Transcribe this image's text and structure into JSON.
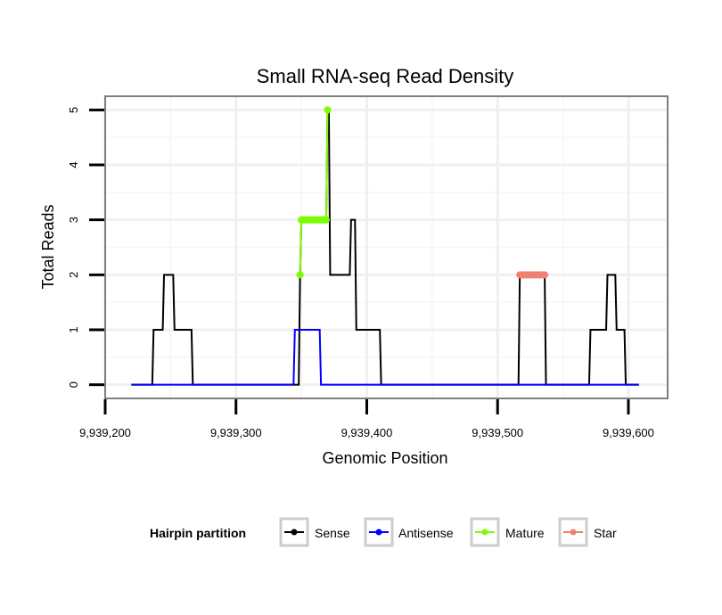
{
  "chart_data": {
    "type": "line",
    "title": "Small RNA-seq Read Density",
    "xlabel": "Genomic Position",
    "ylabel": "Total Reads",
    "xlim": [
      9939200,
      9939630
    ],
    "ylim": [
      -0.25,
      5.25
    ],
    "x_ticks": [
      9939200,
      9939300,
      9939400,
      9939500,
      9939600
    ],
    "x_tick_labels": [
      "9,939,200",
      "9,939,300",
      "9,939,400",
      "9,939,500",
      "9,939,600"
    ],
    "y_ticks": [
      0,
      1,
      2,
      3,
      4,
      5
    ],
    "y_tick_labels": [
      "0",
      "1",
      "2",
      "3",
      "4",
      "5"
    ],
    "grid": true,
    "legend_title": "Hairpin partition",
    "legend_position": "bottom",
    "series": [
      {
        "name": "Sense",
        "color": "#000000",
        "marker": "none",
        "x": [
          9939220,
          9939236,
          9939237,
          9939244,
          9939245,
          9939252,
          9939253,
          9939266,
          9939267,
          9939348,
          9939349,
          9939350,
          9939369,
          9939370,
          9939371,
          9939372,
          9939387,
          9939388,
          9939391,
          9939392,
          9939410,
          9939411,
          9939516,
          9939517,
          9939536,
          9939537,
          9939570,
          9939571,
          9939583,
          9939584,
          9939590,
          9939591,
          9939597,
          9939598,
          9939604,
          9939605,
          9939608
        ],
        "y": [
          0,
          0,
          1,
          1,
          2,
          2,
          1,
          1,
          0,
          0,
          2,
          3,
          3,
          5,
          5,
          2,
          2,
          3,
          3,
          1,
          1,
          0,
          0,
          2,
          2,
          0,
          0,
          1,
          1,
          2,
          2,
          1,
          1,
          0,
          0,
          0,
          0
        ]
      },
      {
        "name": "Antisense",
        "color": "#0000ff",
        "marker": "none",
        "x": [
          9939220,
          9939344,
          9939345,
          9939364,
          9939365,
          9939608
        ],
        "y": [
          0,
          0,
          1,
          1,
          0,
          0
        ]
      },
      {
        "name": "Mature",
        "color": "#7cfc00",
        "marker": "circle",
        "x": [
          9939349,
          9939350,
          9939351,
          9939352,
          9939353,
          9939354,
          9939355,
          9939356,
          9939357,
          9939358,
          9939359,
          9939360,
          9939361,
          9939362,
          9939363,
          9939364,
          9939365,
          9939366,
          9939367,
          9939368,
          9939369,
          9939370
        ],
        "y": [
          2,
          3,
          3,
          3,
          3,
          3,
          3,
          3,
          3,
          3,
          3,
          3,
          3,
          3,
          3,
          3,
          3,
          3,
          3,
          3,
          3,
          5
        ]
      },
      {
        "name": "Star",
        "color": "#f08070",
        "marker": "circle",
        "x": [
          9939517,
          9939518,
          9939519,
          9939520,
          9939521,
          9939522,
          9939523,
          9939524,
          9939525,
          9939526,
          9939527,
          9939528,
          9939529,
          9939530,
          9939531,
          9939532,
          9939533,
          9939534,
          9939535,
          9939536
        ],
        "y": [
          2,
          2,
          2,
          2,
          2,
          2,
          2,
          2,
          2,
          2,
          2,
          2,
          2,
          2,
          2,
          2,
          2,
          2,
          2,
          2
        ]
      }
    ]
  }
}
